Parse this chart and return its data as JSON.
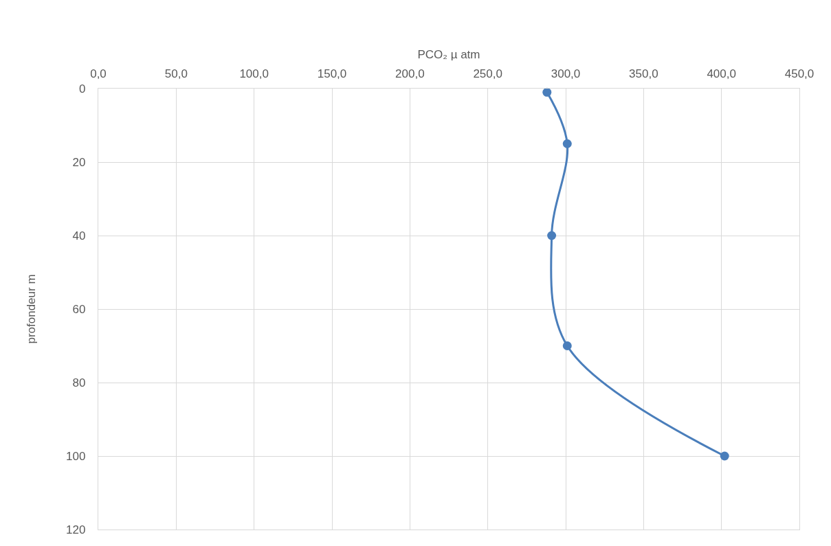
{
  "chart_data": {
    "type": "line",
    "xlabel": "PCO₂ µ atm",
    "ylabel": "profondeur m",
    "x": [
      288,
      301,
      291,
      301,
      402
    ],
    "series": [
      {
        "color": "#4a7ebb",
        "values": [
          1,
          15,
          40,
          70,
          100
        ]
      }
    ],
    "xlim": [
      0,
      450
    ],
    "xticks": [
      {
        "value": 0,
        "label": "0,0"
      },
      {
        "value": 50,
        "label": "50,0"
      },
      {
        "value": 100,
        "label": "100,0"
      },
      {
        "value": 150,
        "label": "150,0"
      },
      {
        "value": 200,
        "label": "200,0"
      },
      {
        "value": 250,
        "label": "250,0"
      },
      {
        "value": 300,
        "label": "300,0"
      },
      {
        "value": 350,
        "label": "350,0"
      },
      {
        "value": 400,
        "label": "400,0"
      },
      {
        "value": 450,
        "label": "450,0"
      }
    ],
    "ylim": [
      120,
      0
    ],
    "yticks": [
      0,
      20,
      40,
      60,
      80,
      100,
      120
    ],
    "grid": true,
    "marker": "circle",
    "line_style": "solid"
  }
}
